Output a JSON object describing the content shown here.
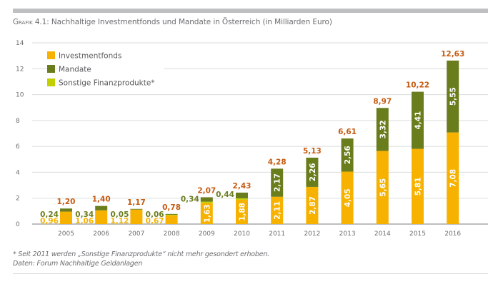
{
  "title_prefix": "Grafik 4.1:",
  "title_text": " Nachhaltige Investmentfonds und Mandate in Österreich (in Milliarden Euro)",
  "footnote_line1": "* Seit 2011 werden „Sonstige Finanzprodukte“ nicht mehr gesondert erhoben.",
  "footnote_line2": "Daten: Forum Nachhaltige Geldanlagen",
  "colors": {
    "investmentfonds": "#f7b200",
    "mandate": "#6a7d1c",
    "sonstige": "#c3cf00",
    "total_label": "#c55a11",
    "mandate_label": "#6a7d1c",
    "fonds_label": "#f7b200",
    "grid": "#d9dbdc",
    "axis": "#a7a9ac"
  },
  "chart_data": {
    "type": "bar",
    "stacked": true,
    "title": "Grafik 4.1: Nachhaltige Investmentfonds und Mandate in Österreich (in Milliarden Euro)",
    "xlabel": "",
    "ylabel": "",
    "ylim": [
      0,
      14
    ],
    "yticks": [
      0,
      2,
      4,
      6,
      8,
      10,
      12,
      14
    ],
    "grid": true,
    "legend_position": "top-left",
    "categories": [
      "2005",
      "2006",
      "2007",
      "2008",
      "2009",
      "2010",
      "2011",
      "2012",
      "2013",
      "2014",
      "2015",
      "2016"
    ],
    "series": [
      {
        "name": "Investmentfonds",
        "values": [
          0.96,
          1.06,
          1.12,
          0.67,
          1.63,
          1.88,
          2.11,
          2.87,
          4.05,
          5.65,
          5.81,
          7.08
        ],
        "labels": [
          "0,96",
          "1,06",
          "1,12",
          "0,67",
          "1,63",
          "1,88",
          "2,11",
          "2,87",
          "4,05",
          "5,65",
          "5,81",
          "7,08"
        ]
      },
      {
        "name": "Mandate",
        "values": [
          0.24,
          0.34,
          0.05,
          0.06,
          0.34,
          0.44,
          2.17,
          2.26,
          2.56,
          3.32,
          4.41,
          5.55
        ],
        "labels": [
          "0,24",
          "0,34",
          "0,05",
          "0,06",
          "0,34",
          "0,44",
          "2,17",
          "2,26",
          "2,56",
          "3,32",
          "4,41",
          "5,55"
        ]
      },
      {
        "name": "Sonstige Finanzprodukte*",
        "values": [
          0,
          0,
          0,
          0.05,
          0.1,
          0.11,
          0,
          0,
          0,
          0,
          0,
          0
        ],
        "labels": []
      }
    ],
    "totals": [
      1.2,
      1.4,
      1.17,
      0.78,
      2.07,
      2.43,
      4.28,
      5.13,
      6.61,
      8.97,
      10.22,
      12.63
    ],
    "total_labels": [
      "1,20",
      "1,40",
      "1,17",
      "0,78",
      "2,07",
      "2,43",
      "4,28",
      "5,13",
      "6,61",
      "8,97",
      "10,22",
      "12,63"
    ],
    "legend": [
      "Investmentfonds",
      "Mandate",
      "Sonstige Finanzprodukte*"
    ]
  }
}
